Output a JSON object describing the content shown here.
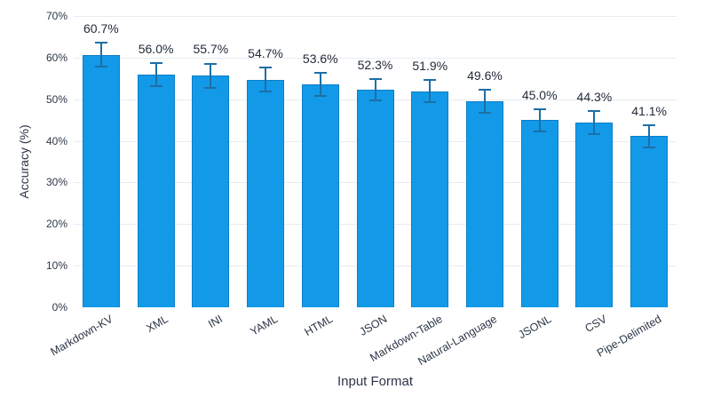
{
  "chart_data": {
    "type": "bar",
    "title": "",
    "xlabel": "Input Format",
    "ylabel": "Accuracy (%)",
    "categories": [
      "Markdown-KV",
      "XML",
      "INI",
      "YAML",
      "HTML",
      "JSON",
      "Markdown-Table",
      "Natural-Language",
      "JSONL",
      "CSV",
      "Pipe-Delimited"
    ],
    "values": [
      60.7,
      56.0,
      55.7,
      54.7,
      53.6,
      52.3,
      51.9,
      49.6,
      45.0,
      44.3,
      41.1
    ],
    "value_labels": [
      "60.7%",
      "56.0%",
      "55.7%",
      "54.7%",
      "53.6%",
      "52.3%",
      "51.9%",
      "49.6%",
      "45.0%",
      "44.3%",
      "41.1%"
    ],
    "errors_approx": [
      3.1,
      3.0,
      3.1,
      3.1,
      3.0,
      2.7,
      2.9,
      3.0,
      2.9,
      3.0,
      2.9
    ],
    "yticks": [
      {
        "value": 0,
        "label": "0%"
      },
      {
        "value": 10,
        "label": "10%"
      },
      {
        "value": 20,
        "label": "20%"
      },
      {
        "value": 30,
        "label": "30%"
      },
      {
        "value": 40,
        "label": "40%"
      },
      {
        "value": 50,
        "label": "50%"
      },
      {
        "value": 60,
        "label": "60%"
      },
      {
        "value": 70,
        "label": "70%"
      }
    ],
    "ylim": [
      0,
      70
    ],
    "grid": "horizontal",
    "legend": "none",
    "error_bars": true,
    "colors": {
      "bar_fill": "#129AE8",
      "bar_border": "#0C7EC5",
      "error_bar": "#1D6FA6",
      "gridline": "#E7ECF2",
      "tick_text": "#2B3647",
      "label_text": "#222B38",
      "background": "#FFFFFF"
    }
  }
}
